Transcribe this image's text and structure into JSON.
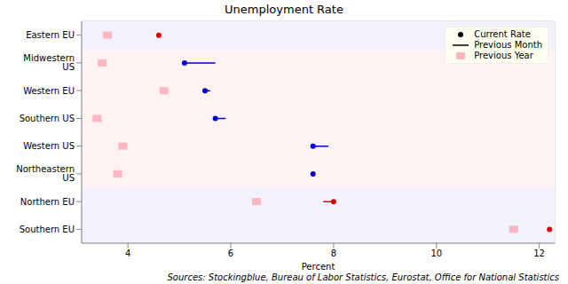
{
  "chart_data": {
    "type": "dot",
    "title": "Unemployment Rate",
    "x_label": "Percent",
    "annotation": "Sources: Stockingblue, Bureau of Labor Statistics, Eurostat, Office for National Statistics",
    "orientation": "horizontal",
    "categories": [
      "Eastern EU",
      "Midwestern US",
      "Western EU",
      "Southern US",
      "Western US",
      "Northeastern US",
      "Northern EU",
      "Southern EU"
    ],
    "series": [
      {
        "name": "Current Rate",
        "marker": "circle",
        "values": [
          4.6,
          5.1,
          5.5,
          5.7,
          7.6,
          7.6,
          8.0,
          12.2
        ],
        "colors": [
          "#dd0000",
          "#0000cc",
          "#0000cc",
          "#0000cc",
          "#0000cc",
          "#0000cc",
          "#dd0000",
          "#dd0000"
        ]
      },
      {
        "name": "Previous Month",
        "line_style": "solid",
        "values": [
          4.6,
          5.7,
          5.6,
          5.9,
          7.9,
          7.6,
          7.8,
          12.2
        ]
      },
      {
        "name": "Previous Year",
        "marker": "square",
        "color": "#ffb6c1",
        "values": [
          3.6,
          3.5,
          4.7,
          3.4,
          3.9,
          3.8,
          6.5,
          11.5
        ]
      }
    ],
    "xlim": [
      3.1,
      12.3
    ],
    "xticks": [
      4,
      6,
      8,
      10,
      12
    ],
    "grid": true,
    "legend": "top-right"
  }
}
